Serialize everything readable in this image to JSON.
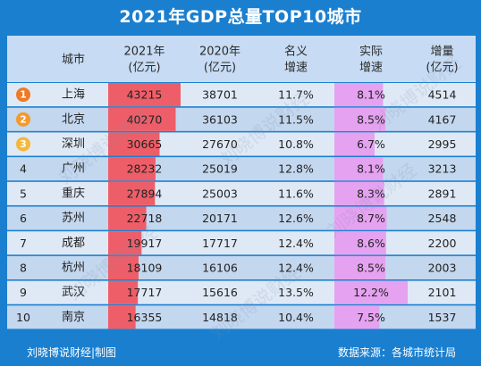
{
  "title": "2021年GDP总量TOP10城市",
  "footer": {
    "credit": "刘晓博说财经|制图",
    "source": "数据来源：各城市统计局"
  },
  "watermark": "刘晓博说财经",
  "colors": {
    "background": "#1a7fcf",
    "header_row": "#c7dcf4",
    "row_even": "#dfe9f6",
    "row_odd": "#c3d7ef",
    "bar_gdp2021": "#ee5e68",
    "bar_real_growth": "#e5a2f0",
    "medal_1": "#f07a24",
    "medal_2": "#f59a2a",
    "medal_3": "#f4b83a"
  },
  "chart_data": {
    "type": "table",
    "title": "2021年GDP总量TOP10城市",
    "columns": [
      {
        "key": "rank",
        "label": ""
      },
      {
        "key": "city",
        "label": "城市"
      },
      {
        "key": "gdp2021",
        "label": "2021年\n(亿元)"
      },
      {
        "key": "gdp2020",
        "label": "2020年\n(亿元)"
      },
      {
        "key": "nominal_growth",
        "label": "名义\n增速"
      },
      {
        "key": "real_growth",
        "label": "实际\n增速"
      },
      {
        "key": "increase",
        "label": "增量\n(亿元)"
      }
    ],
    "rows": [
      {
        "rank": "1",
        "city": "上海",
        "gdp2021": 43215,
        "gdp2020": 38701,
        "nominal_growth": "11.7%",
        "real_growth": "8.1%",
        "increase": 4514
      },
      {
        "rank": "2",
        "city": "北京",
        "gdp2021": 40270,
        "gdp2020": 36103,
        "nominal_growth": "11.5%",
        "real_growth": "8.5%",
        "increase": 4167
      },
      {
        "rank": "3",
        "city": "深圳",
        "gdp2021": 30665,
        "gdp2020": 27670,
        "nominal_growth": "10.8%",
        "real_growth": "6.7%",
        "increase": 2995
      },
      {
        "rank": "4",
        "city": "广州",
        "gdp2021": 28232,
        "gdp2020": 25019,
        "nominal_growth": "12.8%",
        "real_growth": "8.1%",
        "increase": 3213
      },
      {
        "rank": "5",
        "city": "重庆",
        "gdp2021": 27894,
        "gdp2020": 25003,
        "nominal_growth": "11.6%",
        "real_growth": "8.3%",
        "increase": 2891
      },
      {
        "rank": "6",
        "city": "苏州",
        "gdp2021": 22718,
        "gdp2020": 20171,
        "nominal_growth": "12.6%",
        "real_growth": "8.7%",
        "increase": 2548
      },
      {
        "rank": "7",
        "city": "成都",
        "gdp2021": 19917,
        "gdp2020": 17717,
        "nominal_growth": "12.4%",
        "real_growth": "8.6%",
        "increase": 2200
      },
      {
        "rank": "8",
        "city": "杭州",
        "gdp2021": 18109,
        "gdp2020": 16106,
        "nominal_growth": "12.4%",
        "real_growth": "8.5%",
        "increase": 2003
      },
      {
        "rank": "9",
        "city": "武汉",
        "gdp2021": 17717,
        "gdp2020": 15616,
        "nominal_growth": "13.5%",
        "real_growth": "12.2%",
        "increase": 2101
      },
      {
        "rank": "10",
        "city": "南京",
        "gdp2021": 16355,
        "gdp2020": 14818,
        "nominal_growth": "10.4%",
        "real_growth": "7.5%",
        "increase": 1537
      }
    ],
    "bar_columns": {
      "gdp2021": {
        "max_value": 43215
      },
      "real_growth": {
        "max_value": 12.2
      }
    }
  }
}
